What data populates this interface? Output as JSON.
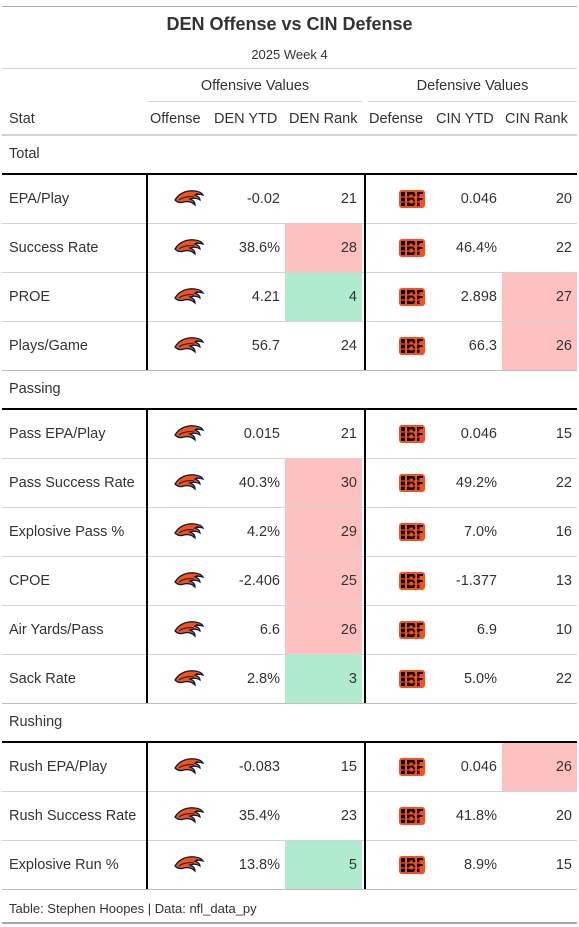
{
  "title": "DEN Offense vs CIN Defense",
  "subtitle": "2025 Week 4",
  "spanners": {
    "offense": "Offensive Values",
    "defense": "Defensive Values"
  },
  "columns": {
    "stat": "Stat",
    "offense": "Offense",
    "den_ytd": "DEN YTD",
    "den_rank": "DEN Rank",
    "defense": "Defense",
    "cin_ytd": "CIN YTD",
    "cin_rank": "CIN Rank"
  },
  "colors": {
    "bad": "#ffc0c0",
    "good": "#b1ebcd",
    "broncos_orange": "#fb4f14",
    "broncos_navy": "#002244",
    "bengals_orange": "#fb4f14",
    "bengals_black": "#000000"
  },
  "icons": {
    "offense": "broncos-logo-icon",
    "defense": "bengals-logo-icon"
  },
  "groups": [
    {
      "label": "Total",
      "rows": [
        {
          "stat": "EPA/Play",
          "den_ytd": "-0.02",
          "den_rank": "21",
          "den_hl": "",
          "cin_ytd": "0.046",
          "cin_rank": "20",
          "cin_hl": ""
        },
        {
          "stat": "Success Rate",
          "den_ytd": "38.6%",
          "den_rank": "28",
          "den_hl": "bad",
          "cin_ytd": "46.4%",
          "cin_rank": "22",
          "cin_hl": ""
        },
        {
          "stat": "PROE",
          "den_ytd": "4.21",
          "den_rank": "4",
          "den_hl": "good",
          "cin_ytd": "2.898",
          "cin_rank": "27",
          "cin_hl": "bad"
        },
        {
          "stat": "Plays/Game",
          "den_ytd": "56.7",
          "den_rank": "24",
          "den_hl": "",
          "cin_ytd": "66.3",
          "cin_rank": "26",
          "cin_hl": "bad"
        }
      ]
    },
    {
      "label": "Passing",
      "rows": [
        {
          "stat": "Pass EPA/Play",
          "den_ytd": "0.015",
          "den_rank": "21",
          "den_hl": "",
          "cin_ytd": "0.046",
          "cin_rank": "15",
          "cin_hl": ""
        },
        {
          "stat": "Pass Success Rate",
          "den_ytd": "40.3%",
          "den_rank": "30",
          "den_hl": "bad",
          "cin_ytd": "49.2%",
          "cin_rank": "22",
          "cin_hl": ""
        },
        {
          "stat": "Explosive Pass %",
          "den_ytd": "4.2%",
          "den_rank": "29",
          "den_hl": "bad",
          "cin_ytd": "7.0%",
          "cin_rank": "16",
          "cin_hl": ""
        },
        {
          "stat": "CPOE",
          "den_ytd": "-2.406",
          "den_rank": "25",
          "den_hl": "bad",
          "cin_ytd": "-1.377",
          "cin_rank": "13",
          "cin_hl": ""
        },
        {
          "stat": "Air Yards/Pass",
          "den_ytd": "6.6",
          "den_rank": "26",
          "den_hl": "bad",
          "cin_ytd": "6.9",
          "cin_rank": "10",
          "cin_hl": ""
        },
        {
          "stat": "Sack Rate",
          "den_ytd": "2.8%",
          "den_rank": "3",
          "den_hl": "good",
          "cin_ytd": "5.0%",
          "cin_rank": "22",
          "cin_hl": ""
        }
      ]
    },
    {
      "label": "Rushing",
      "rows": [
        {
          "stat": "Rush EPA/Play",
          "den_ytd": "-0.083",
          "den_rank": "15",
          "den_hl": "",
          "cin_ytd": "0.046",
          "cin_rank": "26",
          "cin_hl": "bad"
        },
        {
          "stat": "Rush Success Rate",
          "den_ytd": "35.4%",
          "den_rank": "23",
          "den_hl": "",
          "cin_ytd": "41.8%",
          "cin_rank": "20",
          "cin_hl": ""
        },
        {
          "stat": "Explosive Run %",
          "den_ytd": "13.8%",
          "den_rank": "5",
          "den_hl": "good",
          "cin_ytd": "8.9%",
          "cin_rank": "15",
          "cin_hl": ""
        }
      ]
    }
  ],
  "footer": "Table: Stephen Hoopes | Data: nfl_data_py"
}
